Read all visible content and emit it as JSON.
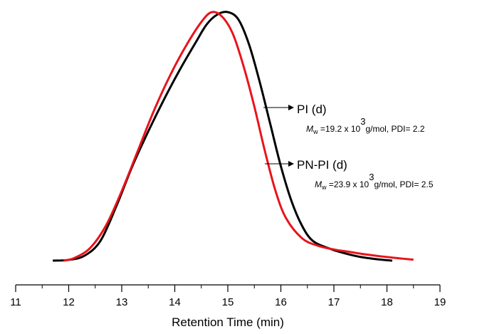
{
  "chart_data": {
    "type": "line",
    "title": "",
    "xlabel": "Retention Time (min)",
    "ylabel": "",
    "xlim": [
      11,
      19
    ],
    "xticks": [
      "11",
      "12",
      "13",
      "14",
      "15",
      "16",
      "17",
      "18",
      "19"
    ],
    "y_axis_visible": false,
    "grid": false,
    "colors": {
      "PI (d)": "#000000",
      "PN-PI (d)": "#e8141b"
    },
    "series": [
      {
        "name": "PI (d)",
        "color": "#000000",
        "x": [
          11.7,
          12.0,
          12.3,
          12.6,
          12.9,
          13.2,
          13.5,
          13.8,
          14.1,
          14.4,
          14.6,
          14.8,
          15.0,
          15.2,
          15.4,
          15.6,
          15.8,
          16.0,
          16.2,
          16.4,
          16.6,
          16.9,
          17.2,
          17.5,
          17.8,
          18.1
        ],
        "y": [
          0.0,
          0.003,
          0.02,
          0.08,
          0.22,
          0.38,
          0.52,
          0.65,
          0.77,
          0.88,
          0.95,
          0.99,
          1.0,
          0.97,
          0.87,
          0.72,
          0.55,
          0.38,
          0.24,
          0.14,
          0.08,
          0.05,
          0.03,
          0.015,
          0.006,
          0.0
        ]
      },
      {
        "name": "PN-PI (d)",
        "color": "#e8141b",
        "x": [
          11.9,
          12.1,
          12.4,
          12.7,
          13.0,
          13.3,
          13.6,
          13.9,
          14.2,
          14.5,
          14.7,
          14.9,
          15.1,
          15.3,
          15.5,
          15.7,
          15.9,
          16.1,
          16.4,
          16.7,
          17.0,
          17.3,
          17.6,
          17.9,
          18.2,
          18.5
        ],
        "y": [
          0.0,
          0.01,
          0.05,
          0.14,
          0.28,
          0.44,
          0.6,
          0.74,
          0.86,
          0.96,
          1.0,
          0.98,
          0.91,
          0.78,
          0.62,
          0.44,
          0.28,
          0.17,
          0.09,
          0.06,
          0.045,
          0.035,
          0.025,
          0.017,
          0.01,
          0.004
        ]
      }
    ],
    "annotations": [
      {
        "series": "PI (d)",
        "label": "PI (d)",
        "mw_symbol": "M",
        "mw_sub": "w",
        "mw_prefix": " =19.2 x 10",
        "mw_exp": "3",
        "mw_suffix": "g/mol, PDI= 2.2",
        "arrow_from_x": 15.75
      },
      {
        "series": "PN-PI (d)",
        "label": "PN-PI (d)",
        "mw_symbol": "M",
        "mw_sub": "w",
        "mw_prefix": " =23.9 x 10",
        "mw_exp": "3",
        "mw_suffix": "g/mol, PDI= 2.5",
        "arrow_from_x": 15.75
      }
    ]
  }
}
